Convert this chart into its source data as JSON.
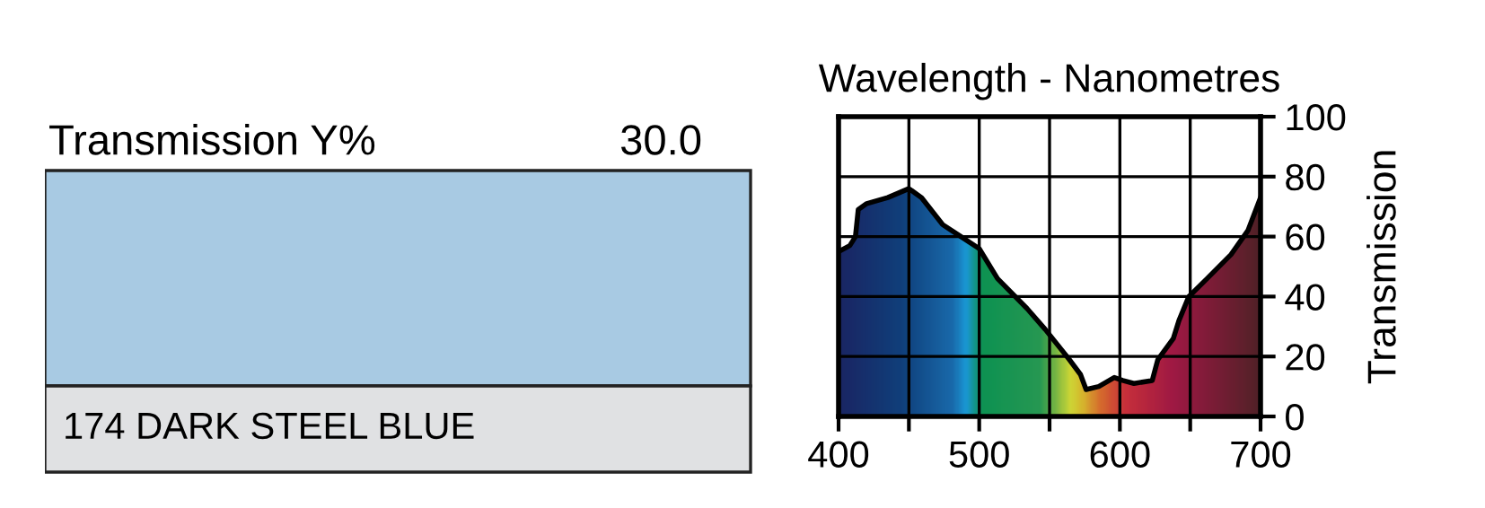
{
  "chart_data": [
    {
      "type": "other",
      "color": "#a8cae3",
      "annotations": [
        "Transmission Y%",
        "30.0",
        "174 DARK STEEL BLUE"
      ]
    },
    {
      "type": "area",
      "xlabel": "Wavelength - Nanometres",
      "ylabel": "Transmission",
      "xlim": [
        400,
        700
      ],
      "ylim": [
        0,
        100
      ],
      "xticks": [
        400,
        {
          "value": 450,
          "label": null
        },
        500,
        {
          "value": 550,
          "label": null
        },
        600,
        {
          "value": 650,
          "label": null
        },
        700
      ],
      "yticks": [
        0,
        20,
        40,
        60,
        80,
        100
      ],
      "grid": true,
      "series": [
        {
          "color": "#000000",
          "x": [
            400,
            408,
            412,
            414,
            420,
            435,
            450,
            459,
            474,
            487,
            500,
            513,
            534,
            547,
            564,
            572,
            576,
            585,
            596,
            602,
            610,
            623,
            627,
            638,
            642,
            649,
            662,
            679,
            691,
            700
          ],
          "values": [
            55,
            57,
            60,
            69,
            71,
            73,
            76,
            73,
            64,
            60,
            56,
            46,
            36,
            29,
            19,
            14,
            9,
            10,
            13,
            12,
            11,
            12,
            19,
            26,
            32,
            40,
            46,
            54,
            62,
            73
          ]
        }
      ]
    }
  ]
}
